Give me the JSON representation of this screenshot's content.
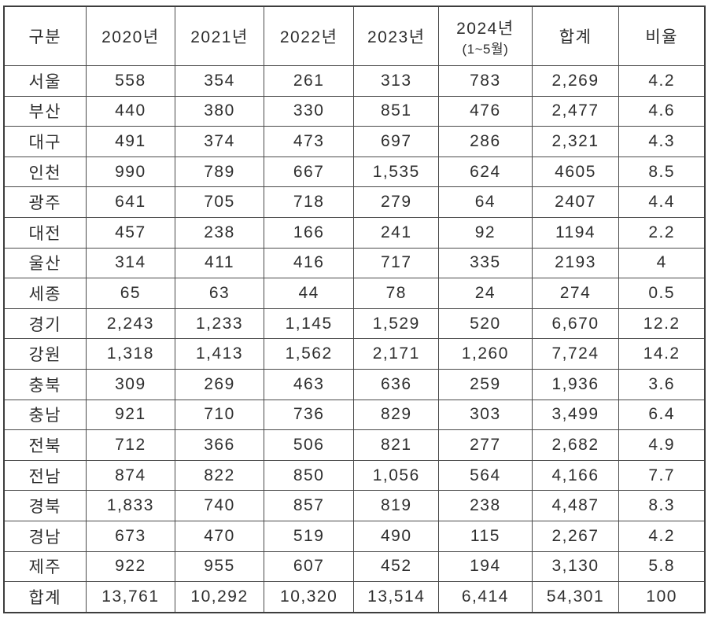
{
  "table": {
    "columns": [
      {
        "key": "region",
        "label": "구분",
        "sublabel": ""
      },
      {
        "key": "y2020",
        "label": "2020년",
        "sublabel": ""
      },
      {
        "key": "y2021",
        "label": "2021년",
        "sublabel": ""
      },
      {
        "key": "y2022",
        "label": "2022년",
        "sublabel": ""
      },
      {
        "key": "y2023",
        "label": "2023년",
        "sublabel": ""
      },
      {
        "key": "y2024",
        "label": "2024년",
        "sublabel": "(1~5월)"
      },
      {
        "key": "total",
        "label": "합계",
        "sublabel": ""
      },
      {
        "key": "ratio",
        "label": "비율",
        "sublabel": ""
      }
    ],
    "rows": [
      {
        "region": "서울",
        "values": [
          "558",
          "354",
          "261",
          "313",
          "783",
          "2,269",
          "4.2"
        ]
      },
      {
        "region": "부산",
        "values": [
          "440",
          "380",
          "330",
          "851",
          "476",
          "2,477",
          "4.6"
        ]
      },
      {
        "region": "대구",
        "values": [
          "491",
          "374",
          "473",
          "697",
          "286",
          "2,321",
          "4.3"
        ]
      },
      {
        "region": "인천",
        "values": [
          "990",
          "789",
          "667",
          "1,535",
          "624",
          "4605",
          "8.5"
        ]
      },
      {
        "region": "광주",
        "values": [
          "641",
          "705",
          "718",
          "279",
          "64",
          "2407",
          "4.4"
        ]
      },
      {
        "region": "대전",
        "values": [
          "457",
          "238",
          "166",
          "241",
          "92",
          "1194",
          "2.2"
        ]
      },
      {
        "region": "울산",
        "values": [
          "314",
          "411",
          "416",
          "717",
          "335",
          "2193",
          "4"
        ]
      },
      {
        "region": "세종",
        "values": [
          "65",
          "63",
          "44",
          "78",
          "24",
          "274",
          "0.5"
        ]
      },
      {
        "region": "경기",
        "values": [
          "2,243",
          "1,233",
          "1,145",
          "1,529",
          "520",
          "6,670",
          "12.2"
        ]
      },
      {
        "region": "강원",
        "values": [
          "1,318",
          "1,413",
          "1,562",
          "2,171",
          "1,260",
          "7,724",
          "14.2"
        ]
      },
      {
        "region": "충북",
        "values": [
          "309",
          "269",
          "463",
          "636",
          "259",
          "1,936",
          "3.6"
        ]
      },
      {
        "region": "충남",
        "values": [
          "921",
          "710",
          "736",
          "829",
          "303",
          "3,499",
          "6.4"
        ]
      },
      {
        "region": "전북",
        "values": [
          "712",
          "366",
          "506",
          "821",
          "277",
          "2,682",
          "4.9"
        ]
      },
      {
        "region": "전남",
        "values": [
          "874",
          "822",
          "850",
          "1,056",
          "564",
          "4,166",
          "7.7"
        ]
      },
      {
        "region": "경북",
        "values": [
          "1,833",
          "740",
          "857",
          "819",
          "238",
          "4,487",
          "8.3"
        ]
      },
      {
        "region": "경남",
        "values": [
          "673",
          "470",
          "519",
          "490",
          "115",
          "2,267",
          "4.2"
        ]
      },
      {
        "region": "제주",
        "values": [
          "922",
          "955",
          "607",
          "452",
          "194",
          "3,130",
          "5.8"
        ]
      },
      {
        "region": "합계",
        "values": [
          "13,761",
          "10,292",
          "10,320",
          "13,514",
          "6,414",
          "54,301",
          "100"
        ]
      }
    ]
  },
  "colors": {
    "background": "#ffffff",
    "text": "#2e2e2e",
    "border": "#4a4a4a"
  }
}
